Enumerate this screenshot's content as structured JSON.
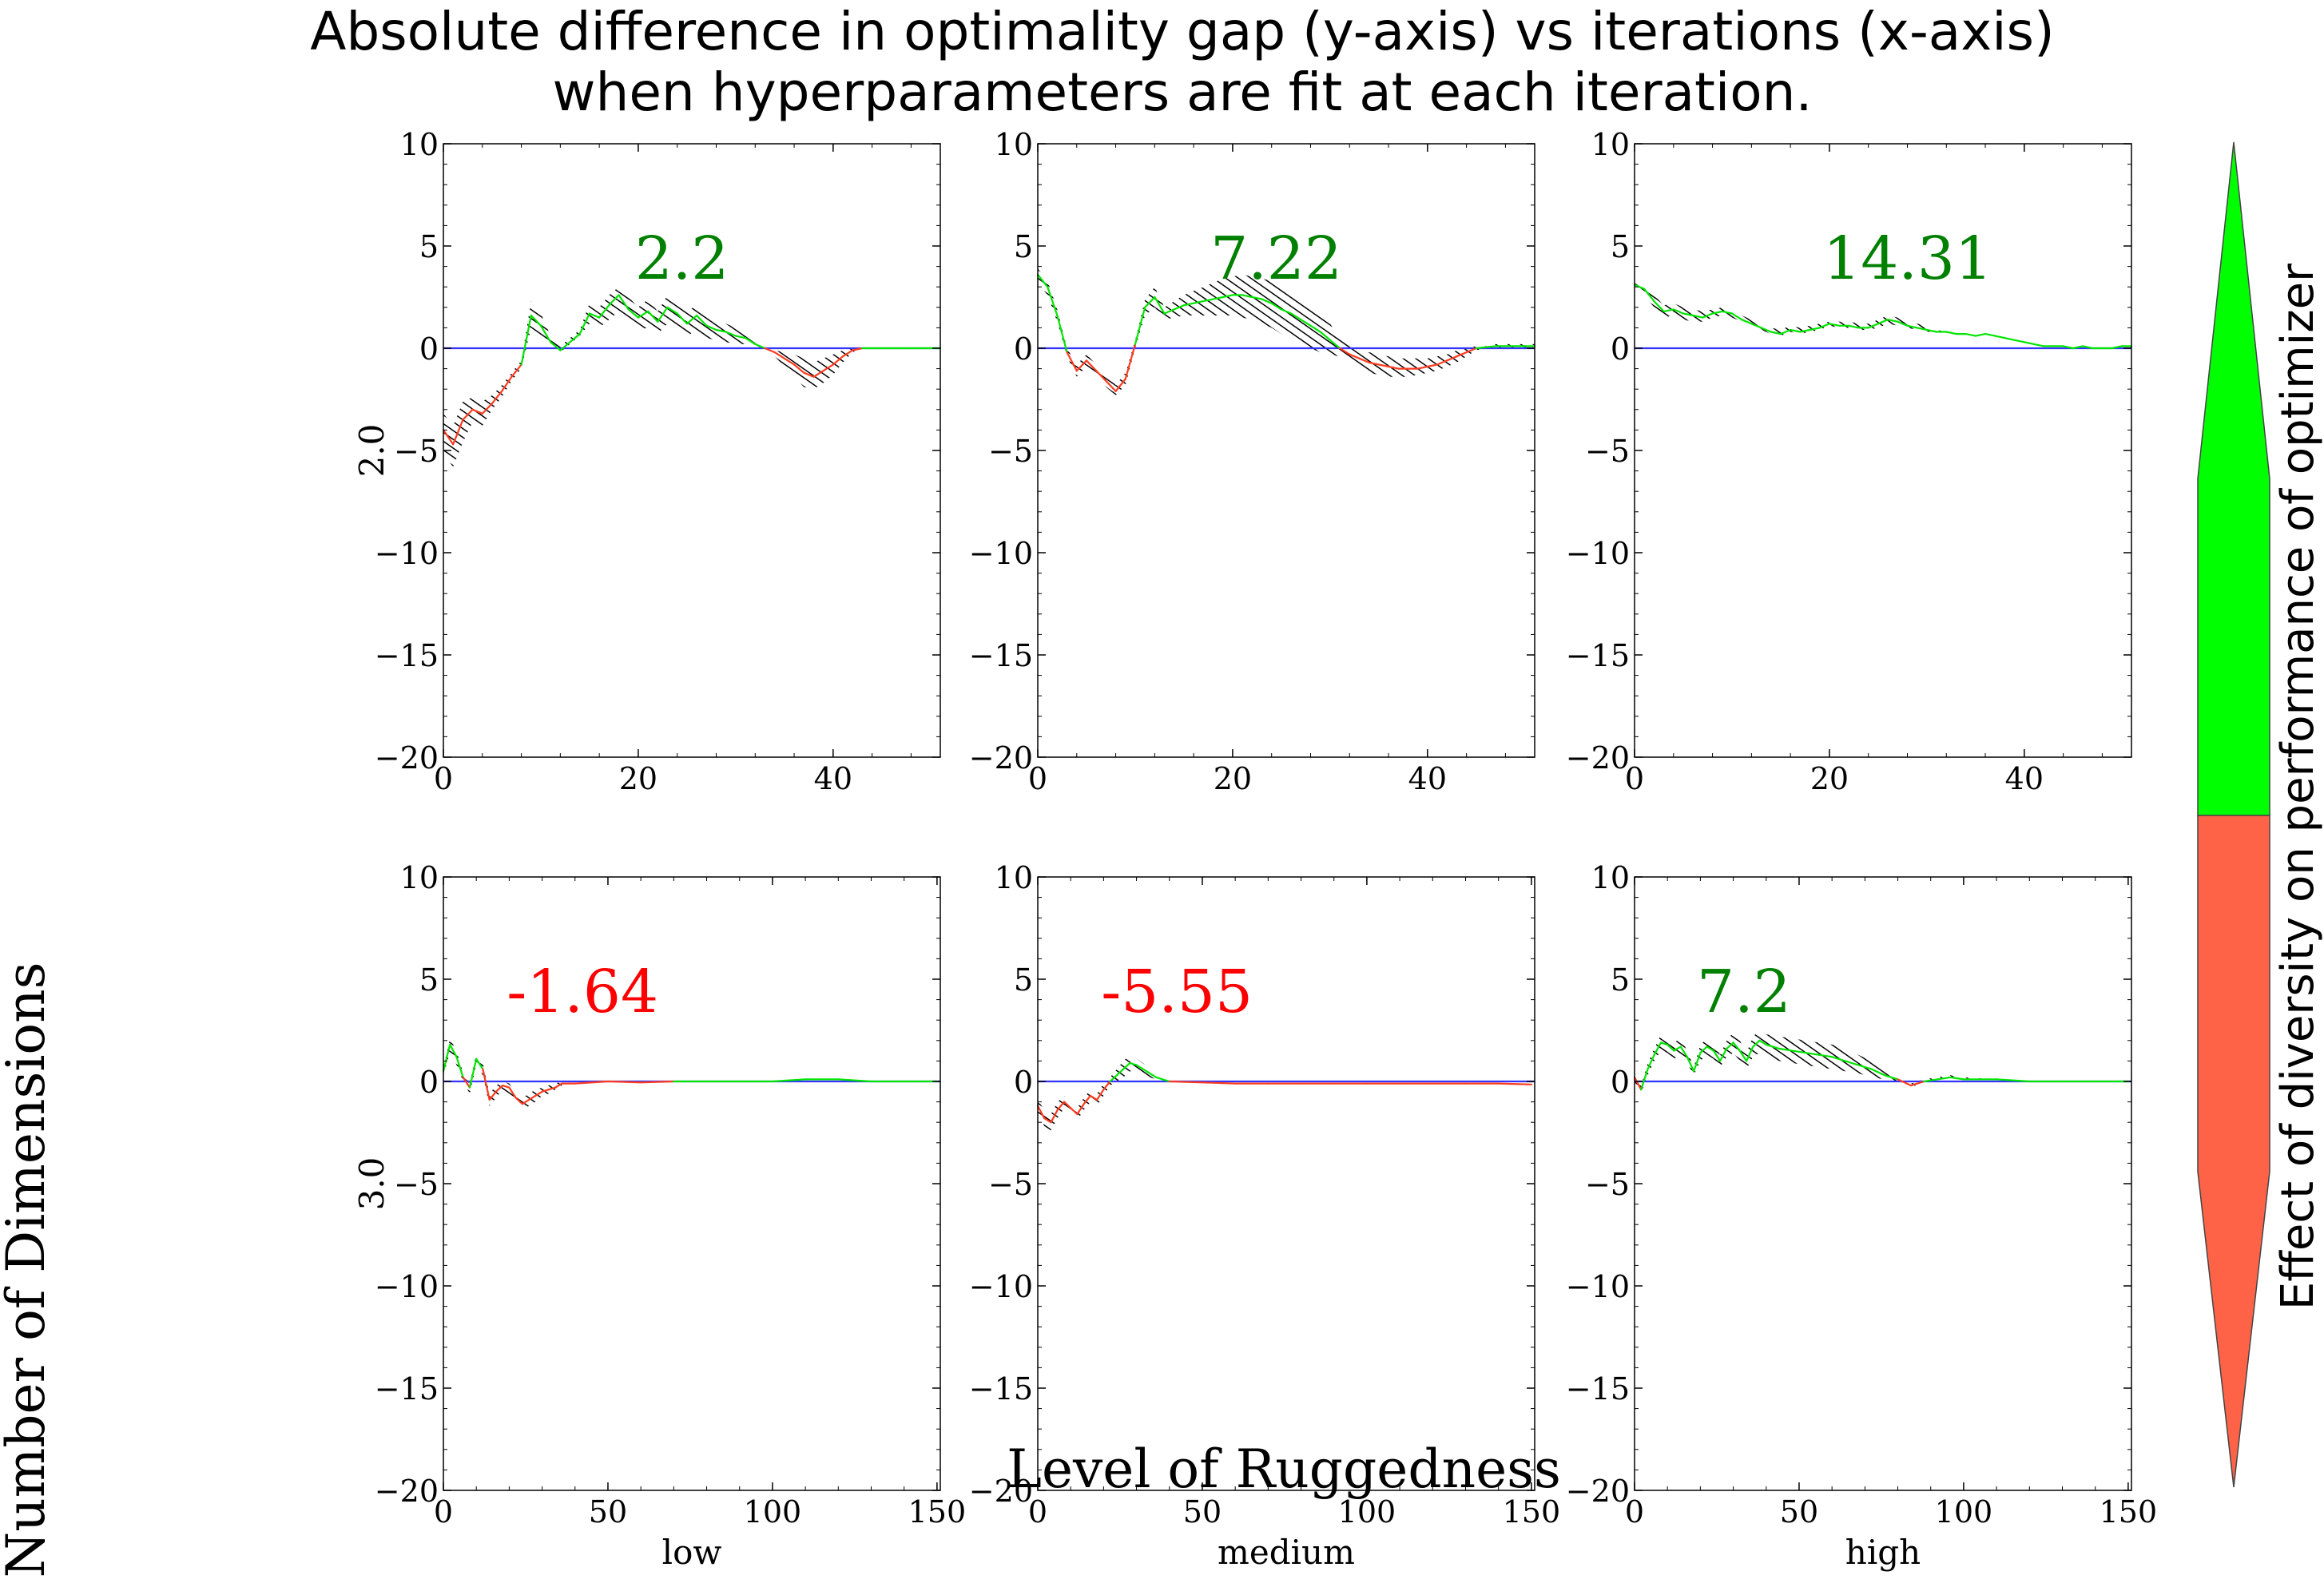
{
  "title_line1": "Absolute difference in optimality gap (y-axis) vs iterations (x-axis)",
  "title_line2": "when hyperparameters are fit at each iteration.",
  "row_axis_title": "Number of Dimensions",
  "col_axis_title": "Level of Ruggedness",
  "colorbar_label": "Effect of diversity on performance of optimizer",
  "colors": {
    "positive": "#008000",
    "negative": "#ff0000",
    "line_pos": "#00e600",
    "line_neg": "#ff3b1f",
    "zero_line": "#3333ff",
    "cbar_pos": "#00ff00",
    "cbar_neg": "#ff6347",
    "hatch": "#000000"
  },
  "chart_data": [
    {
      "type": "line",
      "row_label": "2.0",
      "col_label": "",
      "annotation": "2.2",
      "xlim": [
        0,
        51
      ],
      "ylim": [
        -20,
        10
      ],
      "xticks": [
        0,
        20,
        40
      ],
      "yticks": [
        10,
        5,
        0,
        -5,
        -10,
        -15,
        -20
      ],
      "x": [
        0,
        1,
        2,
        3,
        4,
        5,
        6,
        7,
        8,
        9,
        10,
        11,
        12,
        13,
        14,
        15,
        16,
        17,
        18,
        19,
        20,
        21,
        22,
        23,
        24,
        25,
        26,
        27,
        28,
        29,
        30,
        31,
        32,
        33,
        34,
        35,
        36,
        37,
        38,
        39,
        40,
        41,
        42,
        43,
        44,
        45,
        46,
        47,
        48,
        49,
        50,
        51
      ],
      "y": [
        -4,
        -4.7,
        -3.5,
        -3,
        -3.2,
        -2.7,
        -2.1,
        -1.4,
        -0.8,
        1.6,
        1.1,
        0.3,
        -0.1,
        0.3,
        0.7,
        1.7,
        1.5,
        2.1,
        2.6,
        1.9,
        1.5,
        1.8,
        1.3,
        2.0,
        1.7,
        1.2,
        1.6,
        1.1,
        0.9,
        0.8,
        0.6,
        0.5,
        0.2,
        0.0,
        -0.2,
        -0.5,
        -0.8,
        -1.2,
        -1.4,
        -1.1,
        -0.8,
        -0.4,
        -0.1,
        0.0,
        0.0,
        0.0,
        0.0,
        0.0,
        0.0,
        0.0,
        0.0,
        0.0
      ],
      "lower": [
        -5.2,
        -5.8,
        -4.6,
        -3.6,
        -3.8,
        -3.0,
        -2.4,
        -1.6,
        -1.0,
        1.0,
        0.6,
        0.1,
        -0.2,
        0.2,
        0.6,
        1.2,
        1.0,
        1.4,
        1.8,
        1.2,
        0.9,
        1.0,
        0.7,
        1.2,
        1.0,
        0.6,
        0.9,
        0.5,
        0.4,
        0.3,
        0.2,
        0.2,
        0.1,
        0.0,
        -0.4,
        -0.9,
        -1.4,
        -1.9,
        -2.0,
        -1.7,
        -1.3,
        -0.7,
        -0.2,
        0.0,
        0.0,
        0.0,
        0.0,
        0.0,
        0.0,
        0.0,
        0.0,
        0.0
      ],
      "upper": [
        -3.2,
        -3.8,
        -2.6,
        -2.4,
        -2.6,
        -2.3,
        -1.8,
        -1.2,
        -0.6,
        2.3,
        1.7,
        0.6,
        0.1,
        0.5,
        0.9,
        2.2,
        2.0,
        2.6,
        3.0,
        2.5,
        2.0,
        2.4,
        1.8,
        2.6,
        2.3,
        1.8,
        2.1,
        1.6,
        1.4,
        1.2,
        1.0,
        0.9,
        0.4,
        0.1,
        -0.1,
        -0.2,
        -0.3,
        -0.5,
        -0.7,
        -0.5,
        -0.3,
        -0.1,
        0.0,
        0.0,
        0.0,
        0.0,
        0.0,
        0.0,
        0.0,
        0.0,
        0.0,
        0.0
      ]
    },
    {
      "type": "line",
      "row_label": "",
      "col_label": "",
      "annotation": "7.22",
      "xlim": [
        0,
        51
      ],
      "ylim": [
        -20,
        10
      ],
      "xticks": [
        0,
        20,
        40
      ],
      "yticks": [
        10,
        5,
        0,
        -5,
        -10,
        -15,
        -20
      ],
      "x": [
        0,
        1,
        2,
        3,
        4,
        5,
        6,
        7,
        8,
        9,
        10,
        11,
        12,
        13,
        14,
        15,
        16,
        17,
        18,
        19,
        20,
        21,
        22,
        23,
        24,
        25,
        26,
        27,
        28,
        29,
        30,
        31,
        32,
        33,
        34,
        35,
        36,
        37,
        38,
        39,
        40,
        41,
        42,
        43,
        44,
        45,
        46,
        47,
        48,
        49,
        50,
        51
      ],
      "y": [
        3.6,
        3.0,
        1.6,
        -0.2,
        -1.1,
        -0.6,
        -1.1,
        -1.6,
        -2.1,
        -1.5,
        0.2,
        2.0,
        2.5,
        1.7,
        1.9,
        2.1,
        2.2,
        2.3,
        2.4,
        2.5,
        2.6,
        2.6,
        2.5,
        2.4,
        2.2,
        1.9,
        1.7,
        1.4,
        1.1,
        0.8,
        0.4,
        0.0,
        -0.3,
        -0.5,
        -0.7,
        -0.8,
        -0.9,
        -1.0,
        -1.0,
        -1.0,
        -0.9,
        -0.8,
        -0.6,
        -0.4,
        -0.2,
        0.0,
        0.05,
        0.1,
        0.1,
        0.1,
        0.1,
        0.1
      ],
      "lower": [
        3.2,
        2.6,
        1.3,
        -0.4,
        -1.4,
        -0.9,
        -1.4,
        -1.9,
        -2.3,
        -1.8,
        0.0,
        1.6,
        2.0,
        1.4,
        1.5,
        1.6,
        1.6,
        1.6,
        1.6,
        1.6,
        1.6,
        1.5,
        1.4,
        1.2,
        1.0,
        0.7,
        0.4,
        0.2,
        0.0,
        -0.2,
        -0.3,
        -0.4,
        -0.7,
        -1.0,
        -1.2,
        -1.3,
        -1.4,
        -1.4,
        -1.4,
        -1.3,
        -1.2,
        -1.1,
        -0.9,
        -0.7,
        -0.4,
        -0.1,
        0.0,
        0.0,
        0.0,
        0.0,
        0.0,
        0.0
      ],
      "upper": [
        3.9,
        3.3,
        1.9,
        0.0,
        -0.8,
        -0.3,
        -0.8,
        -1.3,
        -1.8,
        -1.2,
        0.4,
        2.4,
        3.0,
        2.0,
        2.3,
        2.6,
        2.8,
        3.0,
        3.2,
        3.4,
        3.5,
        3.6,
        3.5,
        3.4,
        3.3,
        3.0,
        2.8,
        2.5,
        2.1,
        1.7,
        1.2,
        0.5,
        0.1,
        -0.1,
        -0.2,
        -0.3,
        -0.4,
        -0.5,
        -0.5,
        -0.5,
        -0.5,
        -0.4,
        -0.3,
        -0.1,
        0.0,
        0.1,
        0.1,
        0.2,
        0.2,
        0.2,
        0.2,
        0.2
      ]
    },
    {
      "type": "line",
      "row_label": "",
      "col_label": "",
      "annotation": "14.31",
      "xlim": [
        0,
        51
      ],
      "ylim": [
        -20,
        10
      ],
      "xticks": [
        0,
        20,
        40
      ],
      "yticks": [
        10,
        5,
        0,
        -5,
        -10,
        -15,
        -20
      ],
      "x": [
        0,
        1,
        2,
        3,
        4,
        5,
        6,
        7,
        8,
        9,
        10,
        11,
        12,
        13,
        14,
        15,
        16,
        17,
        18,
        19,
        20,
        21,
        22,
        23,
        24,
        25,
        26,
        27,
        28,
        29,
        30,
        31,
        32,
        33,
        34,
        35,
        36,
        37,
        38,
        39,
        40,
        41,
        42,
        43,
        44,
        45,
        46,
        47,
        48,
        49,
        50,
        51
      ],
      "y": [
        3.1,
        2.9,
        2.3,
        1.8,
        1.9,
        1.7,
        1.6,
        1.5,
        1.7,
        1.8,
        1.7,
        1.4,
        1.2,
        1.0,
        0.8,
        0.7,
        0.9,
        0.8,
        0.9,
        1.0,
        1.2,
        1.1,
        1.1,
        1.0,
        1.0,
        1.2,
        1.4,
        1.3,
        1.1,
        1.0,
        0.9,
        0.8,
        0.8,
        0.7,
        0.7,
        0.6,
        0.7,
        0.6,
        0.5,
        0.4,
        0.3,
        0.2,
        0.1,
        0.1,
        0.1,
        0.0,
        0.1,
        0.0,
        0.0,
        0.0,
        0.1,
        0.1
      ],
      "lower": [
        2.8,
        2.6,
        2.0,
        1.5,
        1.6,
        1.4,
        1.3,
        1.3,
        1.5,
        1.6,
        1.5,
        1.3,
        1.1,
        0.9,
        0.7,
        0.6,
        0.8,
        0.7,
        0.8,
        0.9,
        1.1,
        1.0,
        1.0,
        0.9,
        0.9,
        1.0,
        1.2,
        1.1,
        1.0,
        0.9,
        0.8,
        0.8,
        0.8,
        0.7,
        0.7,
        0.6,
        0.7,
        0.6,
        0.5,
        0.4,
        0.3,
        0.2,
        0.1,
        0.1,
        0.1,
        0.0,
        0.1,
        0.0,
        0.0,
        0.0,
        0.1,
        0.1
      ],
      "upper": [
        3.4,
        3.2,
        2.6,
        2.1,
        2.2,
        2.0,
        1.9,
        1.8,
        1.9,
        2.0,
        1.9,
        1.6,
        1.4,
        1.2,
        1.0,
        0.9,
        1.1,
        1.0,
        1.1,
        1.2,
        1.3,
        1.3,
        1.3,
        1.2,
        1.2,
        1.4,
        1.6,
        1.5,
        1.3,
        1.2,
        1.1,
        0.9,
        0.8,
        0.7,
        0.7,
        0.6,
        0.7,
        0.6,
        0.5,
        0.4,
        0.3,
        0.2,
        0.1,
        0.1,
        0.1,
        0.0,
        0.1,
        0.0,
        0.0,
        0.0,
        0.1,
        0.1
      ]
    },
    {
      "type": "line",
      "row_label": "3.0",
      "col_label": "low",
      "annotation": "-1.64",
      "xlim": [
        0,
        151
      ],
      "ylim": [
        -20,
        10
      ],
      "xticks": [
        0,
        50,
        100,
        150
      ],
      "yticks": [
        10,
        5,
        0,
        -5,
        -10,
        -15,
        -20
      ],
      "x": [
        0,
        2,
        4,
        6,
        8,
        10,
        12,
        14,
        16,
        18,
        20,
        22,
        24,
        26,
        28,
        30,
        32,
        34,
        36,
        40,
        50,
        60,
        70,
        80,
        90,
        100,
        110,
        120,
        130,
        140,
        150
      ],
      "y": [
        0.5,
        1.8,
        1.2,
        0.2,
        -0.3,
        1.1,
        0.6,
        -0.9,
        -0.5,
        -0.2,
        -0.3,
        -0.8,
        -1.1,
        -0.9,
        -0.7,
        -0.5,
        -0.4,
        -0.3,
        -0.1,
        -0.1,
        0.0,
        -0.05,
        0.0,
        0.0,
        0.0,
        0.0,
        0.1,
        0.1,
        0.0,
        0.0,
        0.0
      ],
      "lower": [
        0.3,
        1.4,
        0.8,
        0.0,
        -0.6,
        0.8,
        0.3,
        -1.2,
        -0.8,
        -0.4,
        -0.6,
        -1.1,
        -1.4,
        -1.2,
        -1.0,
        -0.7,
        -0.6,
        -0.4,
        -0.2,
        -0.1,
        0.0,
        -0.05,
        0.0,
        0.0,
        0.0,
        0.0,
        0.1,
        0.1,
        0.0,
        0.0,
        0.0
      ],
      "upper": [
        0.7,
        2.1,
        1.5,
        0.4,
        -0.1,
        1.4,
        0.9,
        -0.6,
        -0.2,
        0.0,
        -0.1,
        -0.5,
        -0.8,
        -0.6,
        -0.4,
        -0.3,
        -0.2,
        -0.1,
        0.0,
        -0.1,
        0.0,
        -0.05,
        0.0,
        0.0,
        0.0,
        0.0,
        0.1,
        0.1,
        0.0,
        0.0,
        0.0
      ]
    },
    {
      "type": "line",
      "row_label": "",
      "col_label": "medium",
      "annotation": "-5.55",
      "xlim": [
        0,
        151
      ],
      "ylim": [
        -20,
        10
      ],
      "xticks": [
        0,
        50,
        100,
        150
      ],
      "yticks": [
        10,
        5,
        0,
        -5,
        -10,
        -15,
        -20
      ],
      "x": [
        0,
        2,
        4,
        6,
        8,
        10,
        12,
        14,
        16,
        18,
        20,
        22,
        24,
        26,
        28,
        30,
        32,
        34,
        36,
        40,
        50,
        60,
        70,
        80,
        90,
        100,
        110,
        120,
        130,
        140,
        150
      ],
      "y": [
        -1.2,
        -1.8,
        -2.0,
        -1.4,
        -1.0,
        -1.3,
        -1.6,
        -1.1,
        -0.7,
        -0.9,
        -0.4,
        0.0,
        0.3,
        0.6,
        0.9,
        0.8,
        0.6,
        0.4,
        0.2,
        0.0,
        -0.05,
        -0.1,
        -0.1,
        -0.1,
        -0.1,
        -0.1,
        -0.1,
        -0.1,
        -0.1,
        -0.1,
        -0.15
      ],
      "lower": [
        -1.5,
        -2.2,
        -2.4,
        -1.8,
        -1.3,
        -1.6,
        -1.9,
        -1.4,
        -1.0,
        -1.2,
        -0.7,
        -0.2,
        0.0,
        0.2,
        0.5,
        0.5,
        0.3,
        0.2,
        0.1,
        0.0,
        -0.05,
        -0.1,
        -0.1,
        -0.1,
        -0.1,
        -0.1,
        -0.1,
        -0.1,
        -0.1,
        -0.1,
        -0.15
      ],
      "upper": [
        -0.9,
        -1.4,
        -1.6,
        -1.0,
        -0.7,
        -1.0,
        -1.3,
        -0.8,
        -0.4,
        -0.6,
        -0.1,
        0.2,
        0.6,
        1.0,
        1.3,
        1.1,
        0.9,
        0.6,
        0.3,
        0.0,
        -0.05,
        -0.1,
        -0.1,
        -0.1,
        -0.1,
        -0.1,
        -0.1,
        -0.1,
        -0.1,
        -0.1,
        -0.15
      ]
    },
    {
      "type": "line",
      "row_label": "",
      "col_label": "high",
      "annotation": "7.2",
      "xlim": [
        0,
        151
      ],
      "ylim": [
        -20,
        10
      ],
      "xticks": [
        0,
        50,
        100,
        150
      ],
      "yticks": [
        10,
        5,
        0,
        -5,
        -10,
        -15,
        -20
      ],
      "x": [
        0,
        2,
        4,
        6,
        8,
        10,
        12,
        14,
        16,
        18,
        20,
        22,
        24,
        26,
        28,
        30,
        32,
        34,
        36,
        38,
        40,
        44,
        48,
        52,
        56,
        60,
        64,
        68,
        72,
        76,
        80,
        84,
        88,
        92,
        96,
        100,
        110,
        120,
        130,
        140,
        150
      ],
      "y": [
        0.2,
        -0.4,
        0.6,
        1.3,
        1.9,
        1.8,
        1.5,
        1.7,
        1.2,
        0.5,
        1.4,
        1.7,
        1.5,
        1.0,
        1.6,
        1.9,
        1.5,
        1.0,
        1.7,
        2.0,
        1.8,
        1.6,
        1.5,
        1.4,
        1.3,
        1.2,
        1.0,
        0.8,
        0.6,
        0.3,
        0.1,
        -0.2,
        0.0,
        0.1,
        0.2,
        0.1,
        0.1,
        0.0,
        0.0,
        0.0,
        0.0
      ],
      "lower": [
        0.0,
        -0.6,
        0.3,
        1.0,
        1.5,
        1.4,
        1.1,
        1.3,
        0.9,
        0.3,
        1.0,
        1.3,
        1.1,
        0.7,
        1.2,
        1.4,
        1.0,
        0.6,
        1.2,
        1.4,
        1.2,
        1.0,
        0.9,
        0.8,
        0.7,
        0.6,
        0.5,
        0.4,
        0.2,
        0.1,
        0.0,
        -0.3,
        0.0,
        0.1,
        0.2,
        0.1,
        0.1,
        0.0,
        0.0,
        0.0,
        0.0
      ],
      "upper": [
        0.4,
        -0.2,
        0.9,
        1.6,
        2.3,
        2.2,
        1.9,
        2.1,
        1.5,
        0.7,
        1.8,
        2.1,
        1.9,
        1.3,
        2.0,
        2.4,
        2.0,
        1.4,
        2.2,
        2.5,
        2.3,
        2.2,
        2.1,
        2.0,
        1.9,
        1.8,
        1.6,
        1.3,
        1.0,
        0.6,
        0.3,
        -0.1,
        0.1,
        0.2,
        0.3,
        0.2,
        0.1,
        0.0,
        0.0,
        0.0,
        0.0
      ]
    }
  ]
}
